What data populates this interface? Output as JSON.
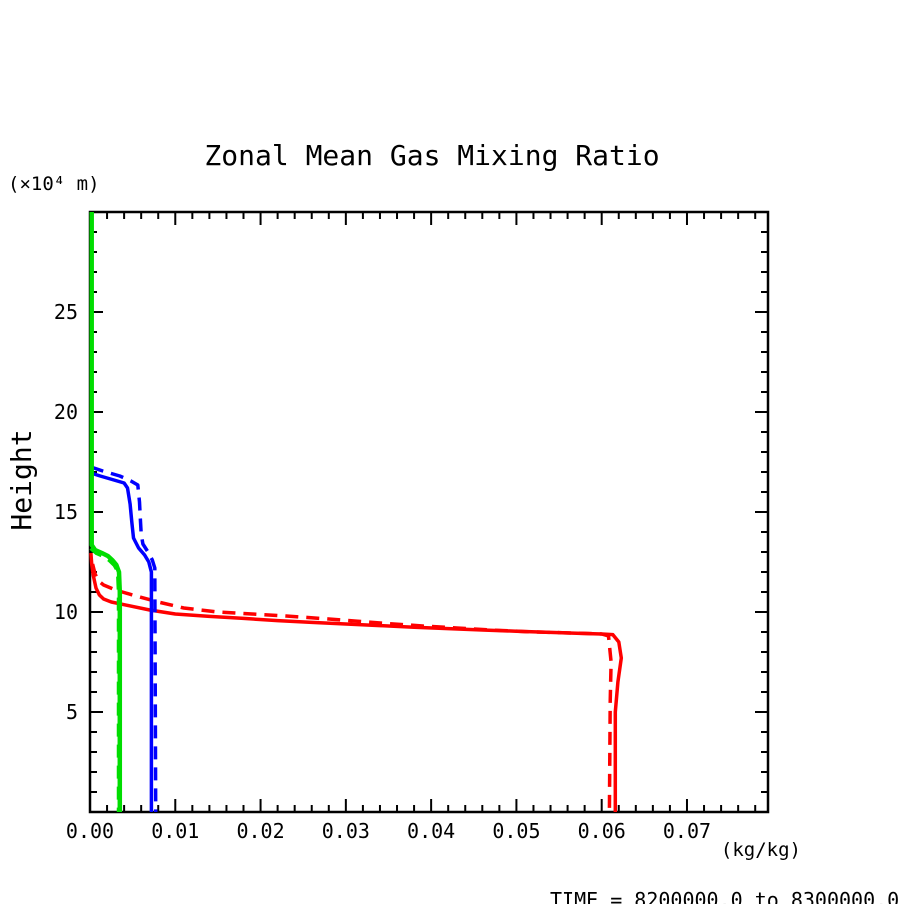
{
  "chart_data": {
    "type": "line",
    "title": "Zonal Mean Gas Mixing Ratio",
    "annotation": "TIME = 8200000.0 to 8300000.0",
    "grid": false,
    "legend": null,
    "x_axis": {
      "label": "(kg/kg)",
      "min": 0,
      "max": 0.0795,
      "major_ticks": [
        0,
        0.01,
        0.02,
        0.03,
        0.04,
        0.05,
        0.06,
        0.07
      ],
      "major_tick_labels": [
        "0.00",
        "0.01",
        "0.02",
        "0.03",
        "0.04",
        "0.05",
        "0.06",
        "0.07"
      ],
      "minor_tick_step": 0.002
    },
    "y_axis": {
      "label": "Height",
      "units": "(×10⁴ m)",
      "min": 0,
      "max": 30,
      "major_ticks": [
        5,
        10,
        15,
        20,
        25
      ],
      "major_tick_labels": [
        "5",
        "10",
        "15",
        "20",
        "25"
      ],
      "minor_tick_step": 1
    },
    "series": [
      {
        "name": "red-dashed",
        "color": "#ff0000",
        "dash": true,
        "stroke_width": 3.5,
        "points": [
          [
            0.0003,
            12.4
          ],
          [
            0.0006,
            11.9
          ],
          [
            0.001,
            11.55
          ],
          [
            0.0016,
            11.35
          ],
          [
            0.003,
            11.1
          ],
          [
            0.005,
            10.85
          ],
          [
            0.008,
            10.5
          ],
          [
            0.011,
            10.2
          ],
          [
            0.015,
            10.0
          ],
          [
            0.019,
            9.9
          ],
          [
            0.023,
            9.8
          ],
          [
            0.027,
            9.68
          ],
          [
            0.031,
            9.55
          ],
          [
            0.035,
            9.42
          ],
          [
            0.039,
            9.3
          ],
          [
            0.043,
            9.2
          ],
          [
            0.047,
            9.1
          ],
          [
            0.051,
            9.02
          ],
          [
            0.055,
            8.97
          ],
          [
            0.058,
            8.93
          ],
          [
            0.06,
            8.9
          ],
          [
            0.0608,
            8.8
          ],
          [
            0.0611,
            7.5
          ],
          [
            0.061,
            5.5
          ],
          [
            0.0609,
            0
          ]
        ]
      },
      {
        "name": "red-solid",
        "color": "#ff0000",
        "dash": false,
        "stroke_width": 3.5,
        "points": [
          [
            0.0001,
            12.95
          ],
          [
            0.0002,
            12.4
          ],
          [
            0.0004,
            11.8
          ],
          [
            0.0007,
            11.2
          ],
          [
            0.0011,
            10.85
          ],
          [
            0.0016,
            10.65
          ],
          [
            0.0025,
            10.5
          ],
          [
            0.0045,
            10.32
          ],
          [
            0.007,
            10.1
          ],
          [
            0.01,
            9.9
          ],
          [
            0.014,
            9.78
          ],
          [
            0.018,
            9.68
          ],
          [
            0.022,
            9.57
          ],
          [
            0.026,
            9.48
          ],
          [
            0.03,
            9.4
          ],
          [
            0.034,
            9.32
          ],
          [
            0.038,
            9.24
          ],
          [
            0.042,
            9.17
          ],
          [
            0.046,
            9.1
          ],
          [
            0.05,
            9.04
          ],
          [
            0.054,
            8.98
          ],
          [
            0.0575,
            8.93
          ],
          [
            0.06,
            8.9
          ],
          [
            0.0613,
            8.87
          ],
          [
            0.062,
            8.5
          ],
          [
            0.0623,
            7.7
          ],
          [
            0.0619,
            6.5
          ],
          [
            0.0616,
            5.0
          ],
          [
            0.0616,
            0
          ]
        ]
      },
      {
        "name": "blue-dashed",
        "color": "#0000ff",
        "dash": true,
        "stroke_width": 3.5,
        "points": [
          [
            0.0001,
            17.25
          ],
          [
            0.0015,
            17.05
          ],
          [
            0.0035,
            16.8
          ],
          [
            0.0048,
            16.55
          ],
          [
            0.0056,
            16.35
          ],
          [
            0.0058,
            15.5
          ],
          [
            0.0059,
            14.7
          ],
          [
            0.006,
            13.9
          ],
          [
            0.0062,
            13.4
          ],
          [
            0.0068,
            13.0
          ],
          [
            0.0073,
            12.6
          ],
          [
            0.0076,
            12.2
          ],
          [
            0.0077,
            0
          ]
        ]
      },
      {
        "name": "blue-solid",
        "color": "#0000ff",
        "dash": false,
        "stroke_width": 3.5,
        "points": [
          [
            0.0001,
            16.95
          ],
          [
            0.0012,
            16.8
          ],
          [
            0.0028,
            16.6
          ],
          [
            0.004,
            16.45
          ],
          [
            0.0044,
            16.2
          ],
          [
            0.0047,
            15.4
          ],
          [
            0.0049,
            14.5
          ],
          [
            0.0051,
            13.7
          ],
          [
            0.0057,
            13.2
          ],
          [
            0.0064,
            12.85
          ],
          [
            0.0069,
            12.5
          ],
          [
            0.0072,
            12.0
          ],
          [
            0.0072,
            0
          ]
        ]
      },
      {
        "name": "green-dashed",
        "color": "#00dd00",
        "dash": true,
        "stroke_width": 4.5,
        "points": [
          [
            0.0001,
            13.2
          ],
          [
            0.0008,
            12.95
          ],
          [
            0.0016,
            12.8
          ],
          [
            0.0023,
            12.6
          ],
          [
            0.0029,
            12.35
          ],
          [
            0.0033,
            12.05
          ],
          [
            0.0034,
            11.0
          ],
          [
            0.0034,
            0
          ]
        ]
      },
      {
        "name": "green-solid",
        "color": "#00dd00",
        "dash": false,
        "stroke_width": 4.5,
        "points": [
          [
            0.0002,
            30
          ],
          [
            0.0002,
            13.35
          ],
          [
            0.0006,
            13.1
          ],
          [
            0.0014,
            12.95
          ],
          [
            0.0021,
            12.8
          ],
          [
            0.0026,
            12.6
          ],
          [
            0.0031,
            12.35
          ],
          [
            0.0034,
            12.0
          ],
          [
            0.0035,
            11.0
          ],
          [
            0.0035,
            0
          ]
        ]
      }
    ]
  }
}
